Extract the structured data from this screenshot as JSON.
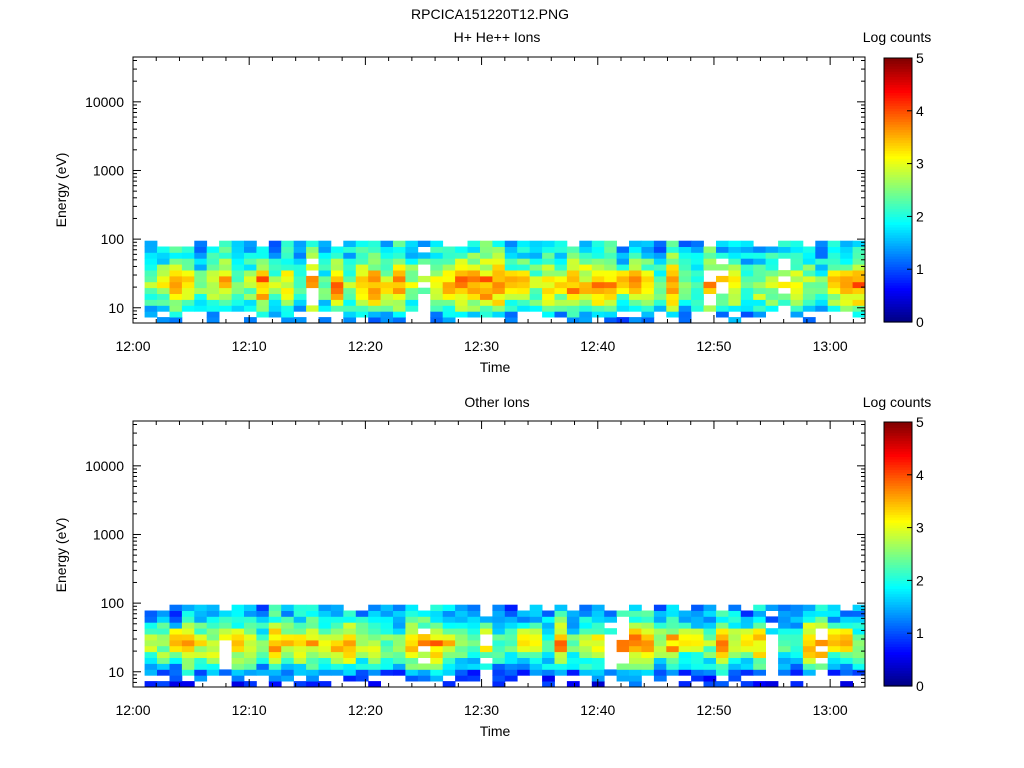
{
  "figure_title": "RPCICA151220T12.PNG",
  "chart_data": [
    {
      "type": "heatmap",
      "title": "H+ He++ Ions",
      "xlabel": "Time",
      "ylabel": "Energy (eV)",
      "x_ticks": [
        "12:00",
        "12:10",
        "12:20",
        "12:30",
        "12:40",
        "12:50",
        "13:00"
      ],
      "x_range": [
        "12:00",
        "13:03"
      ],
      "y_scale": "log",
      "y_ticks": [
        10,
        100,
        1000,
        10000
      ],
      "y_range": [
        6,
        45000
      ],
      "colorbar": {
        "label": "Log counts",
        "range": [
          0,
          5
        ],
        "ticks": [
          0,
          1,
          2,
          3,
          4,
          5
        ],
        "colormap": "jet"
      },
      "data_coverage": {
        "time_start": "12:01",
        "time_end": "13:03",
        "energy_min_eV": 6,
        "energy_max_eV": 95
      },
      "profile_peak_log_counts": [
        1.2,
        1.5,
        2.0,
        2.4,
        2.7,
        2.9,
        3.0,
        2.9,
        2.7,
        2.4,
        2.1,
        1.9,
        1.8,
        1.7
      ],
      "series": [
        {
          "name": "",
          "hot_spot_times": [
            "12:04",
            "12:28",
            "12:33",
            "12:43",
            "12:51",
            "13:01"
          ],
          "hot_spot_energy_eV": [
            25,
            25,
            25,
            25,
            25,
            25
          ],
          "hot_spot_log_counts": [
            3.7,
            3.5,
            3.8,
            3.9,
            3.6,
            3.8
          ]
        }
      ],
      "seed": 11
    },
    {
      "type": "heatmap",
      "title": "Other Ions",
      "xlabel": "Time",
      "ylabel": "Energy (eV)",
      "x_ticks": [
        "12:00",
        "12:10",
        "12:20",
        "12:30",
        "12:40",
        "12:50",
        "13:00"
      ],
      "x_range": [
        "12:00",
        "13:03"
      ],
      "y_scale": "log",
      "y_ticks": [
        10,
        100,
        1000,
        10000
      ],
      "y_range": [
        6,
        45000
      ],
      "colorbar": {
        "label": "Log counts",
        "range": [
          0,
          5
        ],
        "ticks": [
          0,
          1,
          2,
          3,
          4,
          5
        ],
        "colormap": "jet"
      },
      "data_coverage": {
        "time_start": "12:01",
        "time_end": "13:03",
        "energy_min_eV": 6,
        "energy_max_eV": 95
      },
      "profile_peak_log_counts": [
        0.7,
        1.0,
        1.4,
        1.9,
        2.3,
        2.6,
        2.9,
        3.0,
        2.8,
        2.5,
        2.1,
        1.8,
        1.6,
        1.5
      ],
      "series": [
        {
          "name": "",
          "hot_spot_times": [
            "12:04",
            "12:34",
            "12:43",
            "12:48",
            "12:53",
            "13:01"
          ],
          "hot_spot_energy_eV": [
            28,
            28,
            28,
            28,
            28,
            28
          ],
          "hot_spot_log_counts": [
            3.7,
            3.5,
            3.9,
            3.5,
            3.4,
            3.8
          ]
        }
      ],
      "seed": 29
    }
  ]
}
